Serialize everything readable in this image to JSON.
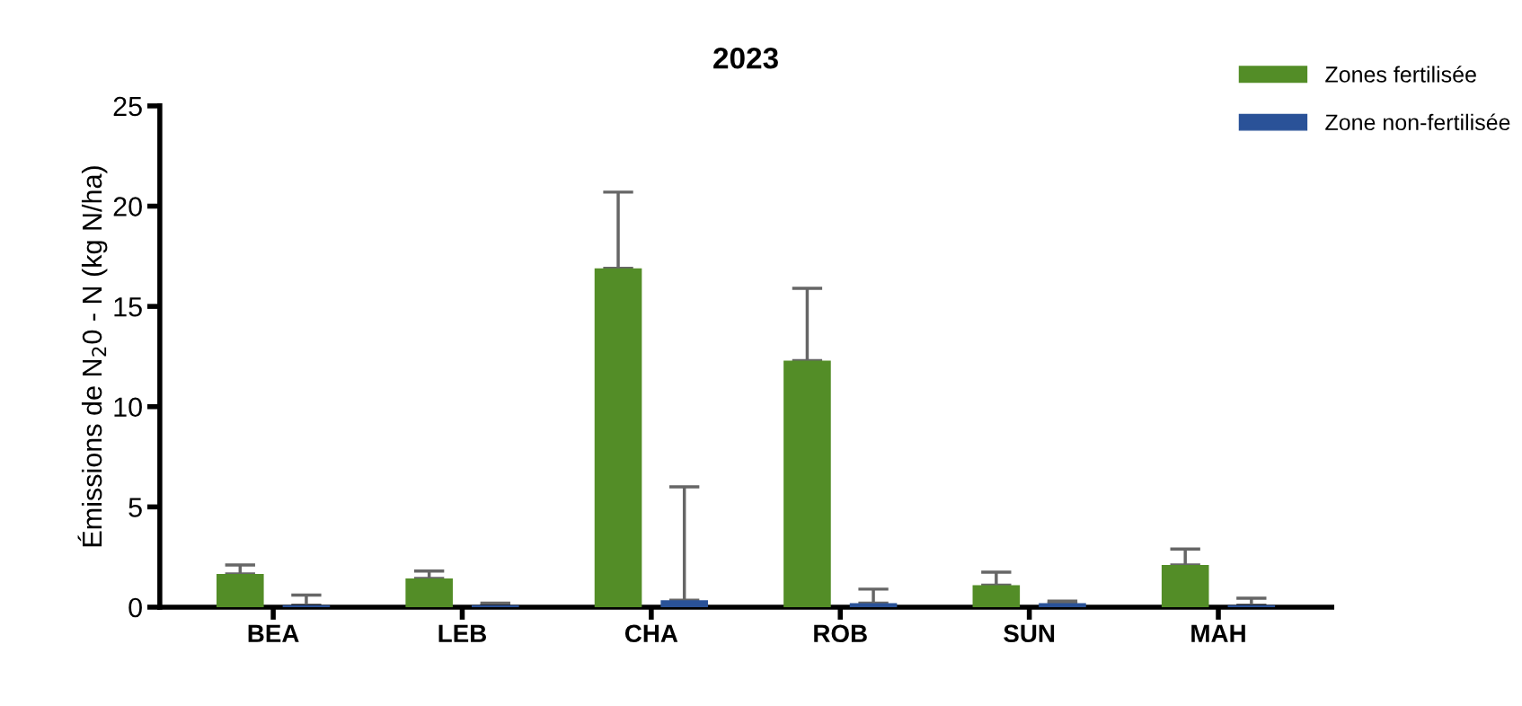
{
  "chart_data": {
    "type": "bar",
    "title": "2023",
    "ylabel": "Émissions de N$_{2}$0 - N (kg N/ha)",
    "categories": [
      "BEA",
      "LEB",
      "CHA",
      "ROB",
      "SUN",
      "MAH"
    ],
    "series": [
      {
        "name": "Zones fertilisée",
        "color": "#538d27",
        "values": [
          1.66,
          1.43,
          16.9,
          12.3,
          1.1,
          2.1
        ],
        "errors": [
          [
            1.66,
            2.1
          ],
          [
            1.43,
            1.8
          ],
          [
            16.9,
            20.7
          ],
          [
            12.3,
            15.9
          ],
          [
            1.1,
            1.75
          ],
          [
            2.1,
            2.9
          ]
        ]
      },
      {
        "name": "Zone non-fertilisée",
        "color": "#2a5298",
        "values": [
          0.1,
          0.1,
          0.35,
          0.2,
          0.2,
          0.1
        ],
        "errors": [
          [
            0.1,
            0.6
          ],
          [
            0.1,
            0.2
          ],
          [
            0.35,
            6.0
          ],
          [
            0.2,
            0.9
          ],
          [
            0.2,
            0.3
          ],
          [
            0.1,
            0.45
          ]
        ]
      }
    ],
    "ylim": [
      0,
      25
    ],
    "yticks": [
      0,
      5,
      10,
      15,
      20,
      25
    ],
    "grid": false,
    "legend": "top right"
  }
}
